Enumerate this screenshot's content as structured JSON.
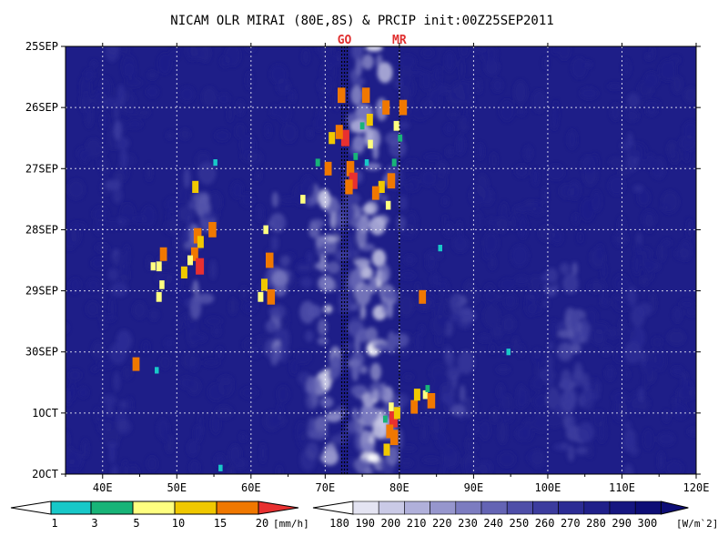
{
  "chart_data": {
    "type": "heatmap",
    "title": "NICAM OLR MIRAI (80E,8S) & PRCIP init:00Z25SEP2011",
    "xlabel": "",
    "ylabel": "",
    "xlim": [
      35,
      120
    ],
    "x_ticks": [
      {
        "value": 40,
        "label": "40E"
      },
      {
        "value": 50,
        "label": "50E"
      },
      {
        "value": 60,
        "label": "60E"
      },
      {
        "value": 70,
        "label": "70E"
      },
      {
        "value": 80,
        "label": "80E"
      },
      {
        "value": 90,
        "label": "90E"
      },
      {
        "value": 100,
        "label": "100E"
      },
      {
        "value": 110,
        "label": "110E"
      },
      {
        "value": 120,
        "label": "120E"
      }
    ],
    "y_ticks": [
      {
        "value": 0,
        "label": "25SEP"
      },
      {
        "value": 1,
        "label": "26SEP"
      },
      {
        "value": 2,
        "label": "27SEP"
      },
      {
        "value": 3,
        "label": "28SEP"
      },
      {
        "value": 4,
        "label": "29SEP"
      },
      {
        "value": 5,
        "label": "30SEP"
      },
      {
        "value": 6,
        "label": "1OCT"
      },
      {
        "value": 7,
        "label": "2OCT"
      }
    ],
    "grid": true,
    "markers": [
      {
        "label": "GO",
        "lon": 72.6
      },
      {
        "label": "MR",
        "lon": 80.0
      }
    ],
    "olr_colorbar": {
      "levels": [
        180,
        190,
        200,
        210,
        220,
        230,
        240,
        250,
        260,
        270,
        280,
        290,
        300
      ],
      "unit": "[W/m`2]",
      "colors": [
        "#ffffff",
        "#e4e4f2",
        "#cacae6",
        "#b0b0da",
        "#9696cd",
        "#7c7cc0",
        "#6464b4",
        "#4e4ea8",
        "#3c3c9e",
        "#2c2c94",
        "#20208a",
        "#161680",
        "#0e0e76"
      ]
    },
    "precip_colorbar": {
      "levels": [
        1,
        3,
        5,
        10,
        15,
        20
      ],
      "unit": "[mm/h]",
      "colors": [
        "#ffffff",
        "#18c8c8",
        "#18b478",
        "#ffff80",
        "#f0c800",
        "#f07800",
        "#e83030"
      ]
    },
    "colors": {
      "background": "#1e1e88",
      "marker_label": "#e03030"
    },
    "precip_cells": [
      {
        "lon": 52.5,
        "date": 2.3,
        "v": 12
      },
      {
        "lon": 52.8,
        "date": 3.1,
        "v": 18
      },
      {
        "lon": 53.2,
        "date": 3.2,
        "v": 12
      },
      {
        "lon": 52.4,
        "date": 3.4,
        "v": 15
      },
      {
        "lon": 51.8,
        "date": 3.5,
        "v": 8
      },
      {
        "lon": 54.8,
        "date": 3.0,
        "v": 18
      },
      {
        "lon": 51.0,
        "date": 3.7,
        "v": 12
      },
      {
        "lon": 53.1,
        "date": 3.6,
        "v": 20
      },
      {
        "lon": 48.2,
        "date": 3.4,
        "v": 15
      },
      {
        "lon": 47.6,
        "date": 3.6,
        "v": 8
      },
      {
        "lon": 46.8,
        "date": 3.6,
        "v": 5
      },
      {
        "lon": 48.0,
        "date": 3.9,
        "v": 6
      },
      {
        "lon": 47.6,
        "date": 4.1,
        "v": 8
      },
      {
        "lon": 44.5,
        "date": 5.2,
        "v": 15
      },
      {
        "lon": 47.3,
        "date": 5.3,
        "v": 2
      },
      {
        "lon": 55.2,
        "date": 1.9,
        "v": 2
      },
      {
        "lon": 62.5,
        "date": 3.5,
        "v": 18
      },
      {
        "lon": 61.8,
        "date": 3.9,
        "v": 12
      },
      {
        "lon": 62.7,
        "date": 4.1,
        "v": 18
      },
      {
        "lon": 61.3,
        "date": 4.1,
        "v": 8
      },
      {
        "lon": 62.0,
        "date": 3.0,
        "v": 6
      },
      {
        "lon": 67.0,
        "date": 2.5,
        "v": 6
      },
      {
        "lon": 72.2,
        "date": 0.8,
        "v": 18
      },
      {
        "lon": 72.7,
        "date": 1.5,
        "v": 20
      },
      {
        "lon": 71.9,
        "date": 1.4,
        "v": 16
      },
      {
        "lon": 70.9,
        "date": 1.5,
        "v": 12
      },
      {
        "lon": 73.4,
        "date": 2.0,
        "v": 18
      },
      {
        "lon": 73.8,
        "date": 2.2,
        "v": 20
      },
      {
        "lon": 73.2,
        "date": 2.3,
        "v": 17
      },
      {
        "lon": 74.1,
        "date": 1.8,
        "v": 3
      },
      {
        "lon": 70.4,
        "date": 2.0,
        "v": 15
      },
      {
        "lon": 69.0,
        "date": 1.9,
        "v": 4
      },
      {
        "lon": 75.5,
        "date": 0.8,
        "v": 18
      },
      {
        "lon": 76.0,
        "date": 1.2,
        "v": 12
      },
      {
        "lon": 75.0,
        "date": 1.3,
        "v": 3
      },
      {
        "lon": 77.6,
        "date": 2.3,
        "v": 12
      },
      {
        "lon": 76.8,
        "date": 2.4,
        "v": 15
      },
      {
        "lon": 76.1,
        "date": 1.6,
        "v": 6
      },
      {
        "lon": 75.6,
        "date": 1.9,
        "v": 2
      },
      {
        "lon": 78.9,
        "date": 2.2,
        "v": 18
      },
      {
        "lon": 78.2,
        "date": 1.0,
        "v": 16
      },
      {
        "lon": 80.5,
        "date": 1.0,
        "v": 18
      },
      {
        "lon": 79.6,
        "date": 1.3,
        "v": 8
      },
      {
        "lon": 80.1,
        "date": 1.5,
        "v": 3
      },
      {
        "lon": 78.5,
        "date": 2.6,
        "v": 6
      },
      {
        "lon": 79.3,
        "date": 1.9,
        "v": 4
      },
      {
        "lon": 79.2,
        "date": 6.1,
        "v": 20
      },
      {
        "lon": 78.7,
        "date": 6.3,
        "v": 15
      },
      {
        "lon": 79.7,
        "date": 6.0,
        "v": 12
      },
      {
        "lon": 79.3,
        "date": 6.4,
        "v": 18
      },
      {
        "lon": 78.3,
        "date": 6.6,
        "v": 12
      },
      {
        "lon": 78.1,
        "date": 6.1,
        "v": 3
      },
      {
        "lon": 78.9,
        "date": 5.9,
        "v": 6
      },
      {
        "lon": 82.0,
        "date": 5.9,
        "v": 15
      },
      {
        "lon": 82.4,
        "date": 5.7,
        "v": 12
      },
      {
        "lon": 83.5,
        "date": 5.7,
        "v": 6
      },
      {
        "lon": 84.3,
        "date": 5.8,
        "v": 18
      },
      {
        "lon": 83.8,
        "date": 5.6,
        "v": 3
      },
      {
        "lon": 83.1,
        "date": 4.1,
        "v": 15
      },
      {
        "lon": 85.5,
        "date": 3.3,
        "v": 2
      },
      {
        "lon": 94.7,
        "date": 5.0,
        "v": 2
      },
      {
        "lon": 55.9,
        "date": 6.9,
        "v": 2
      }
    ]
  }
}
